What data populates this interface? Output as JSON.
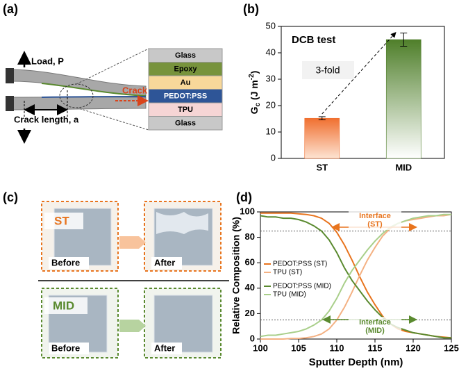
{
  "panels": {
    "a": "(a)",
    "b": "(b)",
    "c": "(c)",
    "d": "(d)"
  },
  "diagram_a": {
    "load": "Load, P",
    "crack": "Crack",
    "crack_length": "Crack length, a",
    "layers": [
      "Glass",
      "Epoxy",
      "Au",
      "PEDOT:PSS",
      "TPU",
      "Glass"
    ]
  },
  "photos_c": {
    "st": "ST",
    "mid": "MID",
    "before": "Before",
    "after": "After"
  },
  "chart_data": [
    {
      "type": "bar",
      "annotation": "DCB test",
      "ratio_label": "3-fold",
      "ylabel_parts": [
        "G",
        "c",
        " (J m",
        "-2",
        ")"
      ],
      "categories": [
        "ST",
        "MID"
      ],
      "values": [
        15.2,
        45
      ],
      "errors": [
        0.6,
        2.5
      ],
      "colors": [
        "#f07030",
        "#4f7f2a"
      ],
      "ylim": [
        0,
        50
      ],
      "yticks": [
        0,
        10,
        20,
        30,
        40,
        50
      ]
    },
    {
      "type": "line",
      "xlabel": "Sputter Depth (nm)",
      "ylabel": "Relative Composition (%)",
      "x": [
        100,
        101,
        102,
        103,
        104,
        105,
        106,
        107,
        108,
        109,
        110,
        111,
        112,
        113,
        114,
        115,
        116,
        117,
        118,
        119,
        120,
        121,
        122,
        123,
        124,
        125
      ],
      "series": [
        {
          "name": "PEDOT:PSS (ST)",
          "color": "#e8741e",
          "values": [
            99,
            99,
            99,
            99,
            99,
            98.5,
            98,
            97,
            95,
            91,
            84,
            74,
            62,
            49,
            37,
            27,
            18,
            12,
            8,
            6,
            5,
            4,
            3,
            2,
            1.5,
            1
          ]
        },
        {
          "name": "TPU (ST)",
          "color": "#f4b183",
          "values": [
            0,
            0,
            0,
            0,
            0.5,
            0.5,
            1,
            2,
            4,
            8,
            15,
            25,
            37,
            50,
            62,
            72,
            81,
            87,
            91,
            93,
            94,
            95,
            96,
            97,
            97,
            98
          ]
        },
        {
          "name": "PEDOT:PSS (MID)",
          "color": "#5a8a2f",
          "values": [
            97,
            96,
            96,
            95,
            95,
            94,
            92,
            89,
            85,
            78,
            68,
            56,
            46,
            38,
            30,
            23,
            17,
            12,
            9,
            7,
            5,
            4,
            3,
            2,
            1,
            1
          ]
        },
        {
          "name": "TPU (MID)",
          "color": "#a9cf8a",
          "values": [
            2,
            3,
            3,
            4,
            5,
            6,
            8,
            11,
            15,
            22,
            32,
            44,
            54,
            62,
            70,
            77,
            83,
            88,
            91,
            93,
            95,
            96,
            97,
            97,
            98,
            98
          ]
        }
      ],
      "hlines": [
        85,
        15
      ],
      "annotations": [
        "Interface (ST)",
        "Interface (MID)"
      ],
      "xlim": [
        100,
        125
      ],
      "xticks": [
        100,
        105,
        110,
        115,
        120,
        125
      ],
      "ylim": [
        0,
        100
      ],
      "yticks": [
        0,
        20,
        40,
        60,
        80,
        100
      ],
      "legend": "left"
    }
  ]
}
